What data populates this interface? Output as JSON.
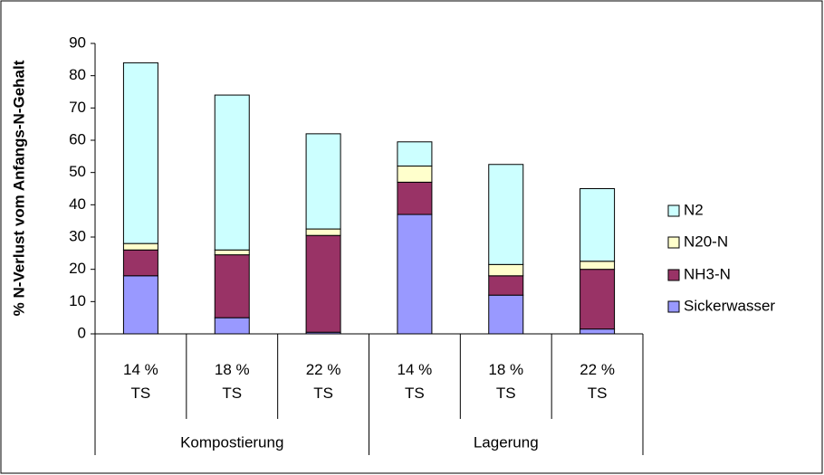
{
  "chart_data": {
    "type": "bar",
    "stacked": true,
    "y_label": "% N-Verlust vom Anfangs-N-Gehalt",
    "groups": [
      {
        "name": "Kompostierung",
        "categories": [
          "14 % TS",
          "18 % TS",
          "22 % TS"
        ]
      },
      {
        "name": "Lagerung",
        "categories": [
          "14 % TS",
          "18 % TS",
          "22 % TS"
        ]
      }
    ],
    "series": [
      {
        "name": "Sickerwasser",
        "color": "#9999ff",
        "values": [
          18,
          5,
          0.5,
          37,
          12,
          1.5
        ]
      },
      {
        "name": "NH3-N",
        "color": "#993366",
        "values": [
          8,
          19.5,
          30,
          10,
          6,
          18.5
        ]
      },
      {
        "name": "N20-N",
        "color": "#ffffcc",
        "values": [
          2,
          1.5,
          2,
          5,
          3.5,
          2.5
        ]
      },
      {
        "name": "N2",
        "color": "#ccffff",
        "values": [
          56,
          48,
          29.5,
          7.5,
          31,
          22.5
        ]
      }
    ],
    "ylim": [
      0,
      90
    ],
    "yticks": [
      0,
      10,
      20,
      30,
      40,
      50,
      60,
      70,
      80,
      90
    ],
    "grid": false,
    "legend": "right"
  }
}
